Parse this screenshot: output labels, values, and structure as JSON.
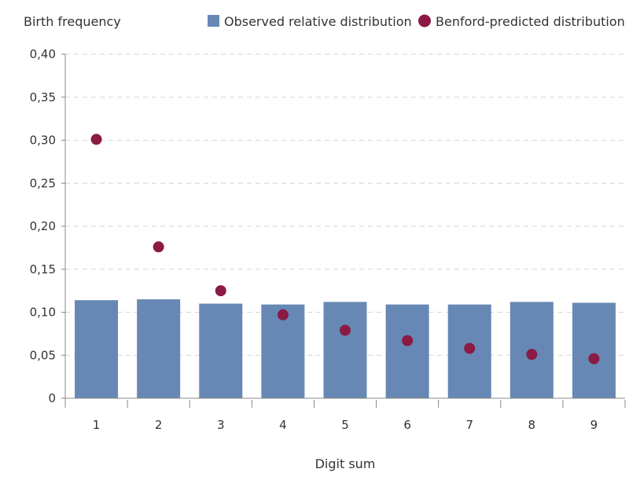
{
  "chart_data": {
    "type": "bar",
    "ylabel": "Birth frequency",
    "xlabel": "Digit sum",
    "categories": [
      "1",
      "2",
      "3",
      "4",
      "5",
      "6",
      "7",
      "8",
      "9"
    ],
    "ylim": [
      0,
      0.4
    ],
    "yticks": [
      "0",
      "0,05",
      "0,10",
      "0,15",
      "0,20",
      "0,25",
      "0,30",
      "0,35",
      "0,40"
    ],
    "grid": "horizontal dashed",
    "legend_placement": "top-right",
    "series": [
      {
        "name": "Observed relative distribution",
        "kind": "bar",
        "color": "#6788b4",
        "values": [
          0.114,
          0.115,
          0.11,
          0.109,
          0.112,
          0.109,
          0.109,
          0.112,
          0.111
        ]
      },
      {
        "name": "Benford-predicted distribution",
        "kind": "dot",
        "color": "#8b1a45",
        "values": [
          0.301,
          0.176,
          0.125,
          0.097,
          0.079,
          0.067,
          0.058,
          0.051,
          0.046
        ]
      }
    ]
  }
}
